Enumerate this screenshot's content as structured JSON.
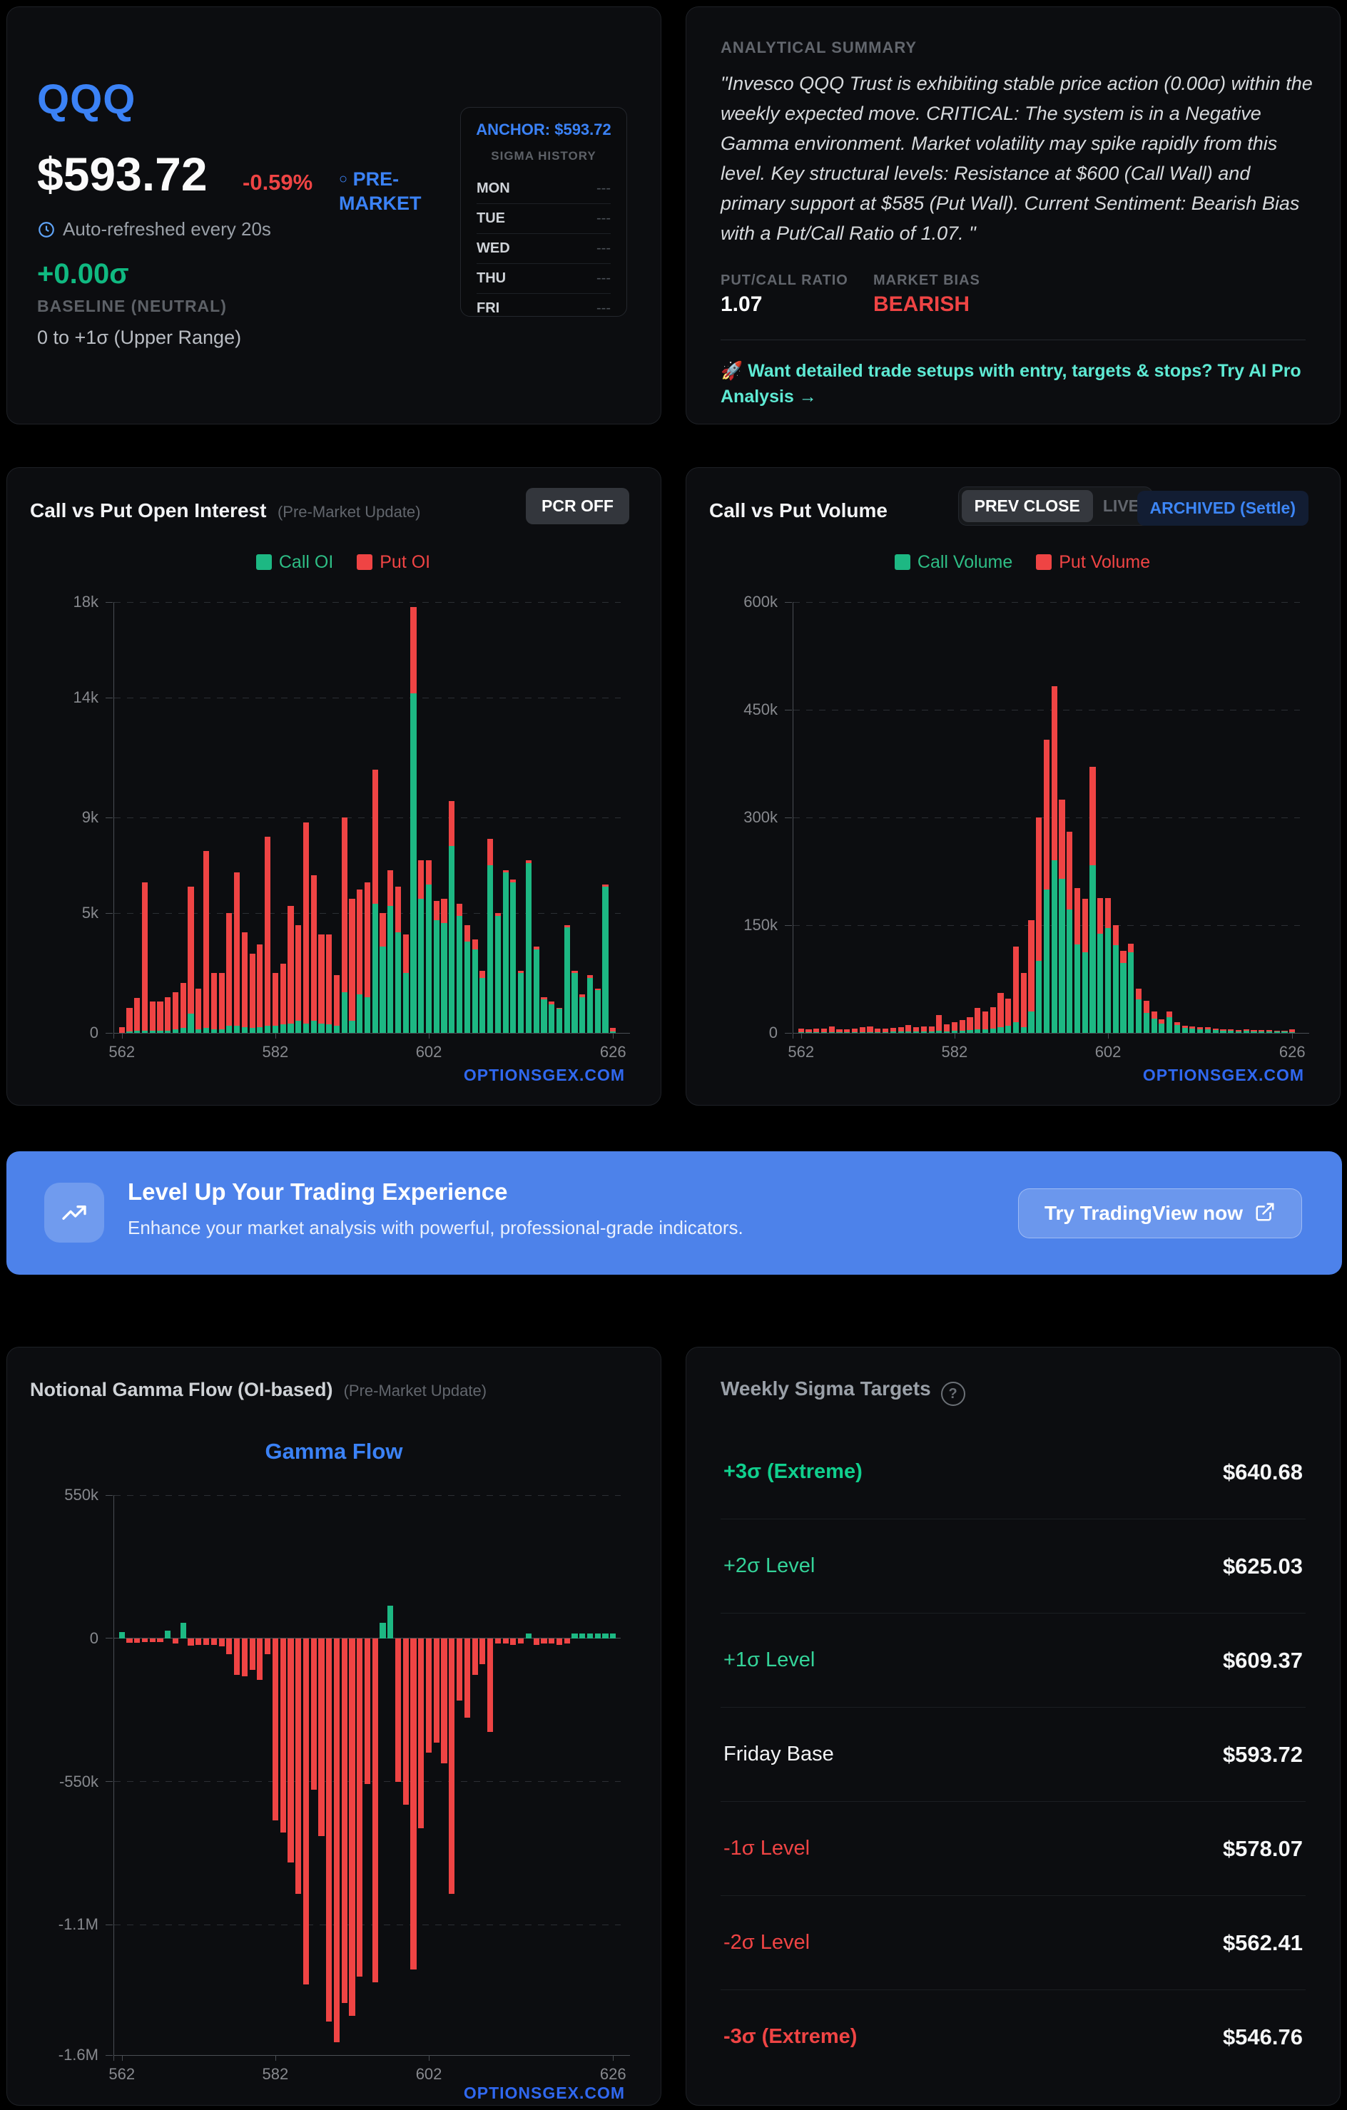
{
  "colors": {
    "accent_blue": "#3b82f6",
    "green": "#1db883",
    "red": "#ef4444",
    "teal_cta": "#5eead4",
    "banner_blue": "#4d82ea",
    "watermark_blue": "#3068f0",
    "bias_red": "#ef4444"
  },
  "quote": {
    "ticker": "QQQ",
    "price": "$593.72",
    "change_pct": "-0.59%",
    "session_dot": "○",
    "session": "PRE-MARKET",
    "refresh_note": "Auto-refreshed every 20s",
    "sigma_change": "+0.00σ",
    "baseline_label": "BASELINE (NEUTRAL)",
    "range_note": "0 to +1σ (Upper Range)"
  },
  "sigma_history": {
    "anchor_label": "ANCHOR: $593.72",
    "title": "SIGMA HISTORY",
    "rows": [
      {
        "day": "MON",
        "value": "---"
      },
      {
        "day": "TUE",
        "value": "---"
      },
      {
        "day": "WED",
        "value": "---"
      },
      {
        "day": "THU",
        "value": "---"
      },
      {
        "day": "FRI",
        "value": "---"
      }
    ]
  },
  "summary": {
    "header": "ANALYTICAL SUMMARY",
    "text": "\"Invesco QQQ Trust is exhibiting stable price action (0.00σ) within the weekly expected move. CRITICAL: The system is in a Negative Gamma environment. Market volatility may spike rapidly from this level. Key structural levels: Resistance at $600 (Call Wall) and primary support at $585 (Put Wall). Current Sentiment: Bearish Bias with a Put/Call Ratio of 1.07. \"",
    "pcr_label": "PUT/CALL RATIO",
    "pcr_value": "1.07",
    "bias_label": "MARKET BIAS",
    "bias_value": "BEARISH",
    "cta_rocket": "🚀",
    "cta": "Want detailed trade setups with entry, targets & stops? Try AI Pro Analysis",
    "cta_arrow": "→"
  },
  "oi_card": {
    "title": "Call vs Put Open Interest",
    "subtitle": "(Pre-Market Update)",
    "pcr_button": "PCR OFF",
    "legend_call": "Call OI",
    "legend_put": "Put OI",
    "watermark": "OPTIONSGEX.COM"
  },
  "volume_card": {
    "title": "Call vs Put Volume",
    "btn_prev": "PREV CLOSE",
    "btn_live": "LIVE",
    "badge": "ARCHIVED (Settle)",
    "legend_call": "Call Volume",
    "legend_put": "Put Volume",
    "watermark": "OPTIONSGEX.COM"
  },
  "banner": {
    "title": "Level Up Your Trading Experience",
    "subtitle": "Enhance your market analysis with powerful, professional-grade indicators.",
    "button": "Try TradingView now"
  },
  "gamma_card": {
    "title": "Notional Gamma Flow (OI-based)",
    "subtitle": "(Pre-Market Update)",
    "chart_title": "Gamma Flow",
    "watermark": "OPTIONSGEX.COM"
  },
  "targets": {
    "title": "Weekly Sigma Targets",
    "rows": [
      {
        "label": "+3σ (Extreme)",
        "value": "$640.68",
        "tone": "green-bold"
      },
      {
        "label": "+2σ Level",
        "value": "$625.03",
        "tone": "green"
      },
      {
        "label": "+1σ Level",
        "value": "$609.37",
        "tone": "green"
      },
      {
        "label": "Friday Base",
        "value": "$593.72",
        "tone": "white"
      },
      {
        "label": "-1σ Level",
        "value": "$578.07",
        "tone": "red"
      },
      {
        "label": "-2σ Level",
        "value": "$562.41",
        "tone": "red"
      },
      {
        "label": "-3σ (Extreme)",
        "value": "$546.76",
        "tone": "red-bold"
      }
    ]
  },
  "chart_data": [
    {
      "type": "bar",
      "name": "call_vs_put_open_interest",
      "title": "Call vs Put Open Interest",
      "stacked": true,
      "unit": "thousand contracts",
      "ylim": [
        0,
        18
      ],
      "yticks": [
        {
          "v": 0,
          "l": "0"
        },
        {
          "v": 5,
          "l": "5k"
        },
        {
          "v": 9,
          "l": "9k"
        },
        {
          "v": 14,
          "l": "14k"
        },
        {
          "v": 18,
          "l": "18k"
        }
      ],
      "xticks": [
        {
          "i": 0,
          "l": "562"
        },
        {
          "i": 20,
          "l": "582"
        },
        {
          "i": 40,
          "l": "602"
        },
        {
          "i": 64,
          "l": "626"
        }
      ],
      "strikes": [
        562,
        563,
        564,
        565,
        566,
        567,
        568,
        569,
        570,
        571,
        572,
        573,
        574,
        575,
        576,
        577,
        578,
        579,
        580,
        581,
        582,
        583,
        584,
        585,
        586,
        587,
        588,
        589,
        590,
        591,
        592,
        593,
        594,
        595,
        596,
        597,
        598,
        599,
        600,
        601,
        602,
        603,
        604,
        605,
        606,
        607,
        608,
        609,
        610,
        611,
        612,
        613,
        614,
        615,
        616,
        617,
        618,
        619,
        620,
        621,
        622,
        623,
        624,
        625,
        626
      ],
      "series": [
        {
          "name": "Call OI",
          "color": "#1db883",
          "values": [
            0,
            0.05,
            0.1,
            0.1,
            0.1,
            0.1,
            0.1,
            0.15,
            0.2,
            0.8,
            0.15,
            0.2,
            0.15,
            0.15,
            0.3,
            0.3,
            0.25,
            0.2,
            0.25,
            0.3,
            0.3,
            0.35,
            0.4,
            0.5,
            0.4,
            0.5,
            0.4,
            0.35,
            0.3,
            1.7,
            0.5,
            1.6,
            1.5,
            5.4,
            3.6,
            5.3,
            4.2,
            2.5,
            14.2,
            5.6,
            6.2,
            4.7,
            4.6,
            7.8,
            4.9,
            3.8,
            3.5,
            2.3,
            7,
            4.9,
            6.7,
            6.3,
            2.5,
            7.1,
            3.5,
            1.4,
            1.2,
            1,
            4.4,
            2.5,
            1.5,
            2.3,
            1.8,
            6.1,
            0.05
          ]
        },
        {
          "name": "Put OI",
          "color": "#ef4444",
          "values": [
            0.25,
            1,
            1.35,
            6.2,
            1.2,
            1.2,
            1.4,
            1.55,
            1.9,
            5.3,
            1.7,
            7.4,
            2.35,
            2.35,
            4.7,
            6.4,
            3.95,
            3.1,
            3.45,
            7.9,
            2.2,
            2.55,
            4.9,
            4,
            8.4,
            6.1,
            3.7,
            3.75,
            2.1,
            7.3,
            5.1,
            4.4,
            4.8,
            5.6,
            1.4,
            1.5,
            1.9,
            1.6,
            3.6,
            1.6,
            1,
            0.8,
            1,
            1.9,
            0.5,
            0.7,
            0.4,
            0.3,
            1.1,
            0.1,
            0.1,
            0.1,
            0.1,
            0.1,
            0.1,
            0.1,
            0.1,
            0.05,
            0.1,
            0.1,
            0.1,
            0.1,
            0.05,
            0.1,
            0.15
          ]
        }
      ]
    },
    {
      "type": "bar",
      "name": "call_vs_put_volume",
      "title": "Call vs Put Volume",
      "stacked": true,
      "unit": "thousand contracts",
      "ylim": [
        0,
        600
      ],
      "yticks": [
        {
          "v": 0,
          "l": "0"
        },
        {
          "v": 150,
          "l": "150k"
        },
        {
          "v": 300,
          "l": "300k"
        },
        {
          "v": 450,
          "l": "450k"
        },
        {
          "v": 600,
          "l": "600k"
        }
      ],
      "xticks": [
        {
          "i": 0,
          "l": "562"
        },
        {
          "i": 20,
          "l": "582"
        },
        {
          "i": 40,
          "l": "602"
        },
        {
          "i": 64,
          "l": "626"
        }
      ],
      "strikes": [
        562,
        563,
        564,
        565,
        566,
        567,
        568,
        569,
        570,
        571,
        572,
        573,
        574,
        575,
        576,
        577,
        578,
        579,
        580,
        581,
        582,
        583,
        584,
        585,
        586,
        587,
        588,
        589,
        590,
        591,
        592,
        593,
        594,
        595,
        596,
        597,
        598,
        599,
        600,
        601,
        602,
        603,
        604,
        605,
        606,
        607,
        608,
        609,
        610,
        611,
        612,
        613,
        614,
        615,
        616,
        617,
        618,
        619,
        620,
        621,
        622,
        623,
        624,
        625,
        626
      ],
      "series": [
        {
          "name": "Call Volume",
          "color": "#1db883",
          "values": [
            1,
            1,
            1,
            1,
            1,
            1,
            1,
            1,
            1,
            1,
            1,
            1,
            2,
            2,
            2,
            2,
            2,
            2,
            3,
            2,
            3,
            3,
            4,
            5,
            5,
            6,
            8,
            10,
            15,
            8,
            30,
            100,
            200,
            240,
            215,
            172,
            123,
            112,
            233,
            138,
            146,
            122,
            97,
            112,
            47,
            28,
            20,
            13,
            22,
            11,
            7,
            6,
            5,
            5,
            4,
            3,
            3,
            2,
            3,
            2,
            2,
            2,
            2,
            2,
            1
          ]
        },
        {
          "name": "Put Volume",
          "color": "#ef4444",
          "values": [
            5,
            4,
            5,
            5,
            8,
            4,
            4,
            5,
            7,
            8,
            5,
            5,
            5,
            6,
            9,
            6,
            7,
            7,
            22,
            10,
            12,
            15,
            18,
            30,
            25,
            30,
            48,
            38,
            105,
            75,
            127,
            200,
            208,
            243,
            110,
            108,
            79,
            75,
            138,
            50,
            42,
            28,
            17,
            12,
            15,
            17,
            10,
            6,
            8,
            4,
            3,
            3,
            3,
            3,
            2,
            2,
            2,
            2,
            2,
            2,
            2,
            2,
            1,
            1,
            4
          ]
        }
      ]
    },
    {
      "type": "bar",
      "name": "notional_gamma_flow",
      "title": "Gamma Flow",
      "stacked": false,
      "signed": true,
      "unit": "thousand dollars notional",
      "ylim": [
        -1600,
        550
      ],
      "yticks": [
        {
          "v": 550,
          "l": "550k"
        },
        {
          "v": 0,
          "l": "0"
        },
        {
          "v": -550,
          "l": "-550k"
        },
        {
          "v": -1100,
          "l": "-1.1M"
        },
        {
          "v": -1600,
          "l": "-1.6M"
        }
      ],
      "xticks": [
        {
          "i": 0,
          "l": "562"
        },
        {
          "i": 20,
          "l": "582"
        },
        {
          "i": 40,
          "l": "602"
        },
        {
          "i": 64,
          "l": "626"
        }
      ],
      "strikes": [
        562,
        563,
        564,
        565,
        566,
        567,
        568,
        569,
        570,
        571,
        572,
        573,
        574,
        575,
        576,
        577,
        578,
        579,
        580,
        581,
        582,
        583,
        584,
        585,
        586,
        587,
        588,
        589,
        590,
        591,
        592,
        593,
        594,
        595,
        596,
        597,
        598,
        599,
        600,
        601,
        602,
        603,
        604,
        605,
        606,
        607,
        608,
        609,
        610,
        611,
        612,
        613,
        614,
        615,
        616,
        617,
        618,
        619,
        620,
        621,
        622,
        623,
        624,
        625,
        626
      ],
      "series": [
        {
          "name": "Net Gamma Flow",
          "color_positive": "#1db883",
          "color_negative": "#ef4444",
          "values": [
            25,
            -18,
            -18,
            -15,
            -15,
            -15,
            30,
            -20,
            60,
            -28,
            -25,
            -25,
            -25,
            -30,
            -60,
            -140,
            -145,
            -120,
            -160,
            -60,
            -700,
            -745,
            -860,
            -980,
            -1330,
            -580,
            -760,
            -1470,
            -1550,
            -1400,
            -1450,
            -1300,
            -560,
            -1320,
            60,
            125,
            -550,
            -640,
            -1270,
            -730,
            -440,
            -400,
            -480,
            -980,
            -240,
            -305,
            -140,
            -100,
            -360,
            -20,
            -20,
            -25,
            -20,
            20,
            -25,
            -20,
            -20,
            -25,
            -20,
            20,
            20,
            20,
            20,
            20,
            20
          ]
        }
      ]
    }
  ]
}
